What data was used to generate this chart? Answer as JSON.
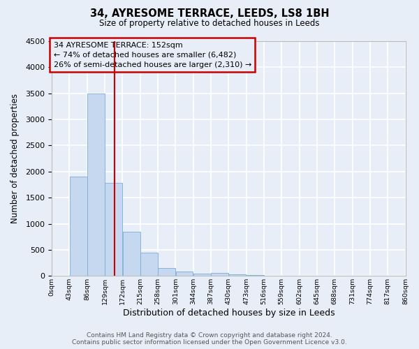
{
  "title": "34, AYRESOME TERRACE, LEEDS, LS8 1BH",
  "subtitle": "Size of property relative to detached houses in Leeds",
  "xlabel": "Distribution of detached houses by size in Leeds",
  "ylabel": "Number of detached properties",
  "bin_labels": [
    "0sqm",
    "43sqm",
    "86sqm",
    "129sqm",
    "172sqm",
    "215sqm",
    "258sqm",
    "301sqm",
    "344sqm",
    "387sqm",
    "430sqm",
    "473sqm",
    "516sqm",
    "559sqm",
    "602sqm",
    "645sqm",
    "688sqm",
    "731sqm",
    "774sqm",
    "817sqm",
    "860sqm"
  ],
  "bar_heights": [
    5,
    1900,
    3500,
    1780,
    850,
    450,
    150,
    80,
    40,
    55,
    30,
    20,
    10,
    8,
    5,
    3,
    2,
    2,
    1,
    1,
    0
  ],
  "bar_color": "#C5D8F0",
  "bar_edge_color": "#7AADD4",
  "ylim": [
    0,
    4500
  ],
  "yticks": [
    0,
    500,
    1000,
    1500,
    2000,
    2500,
    3000,
    3500,
    4000,
    4500
  ],
  "property_line_x": 152,
  "annotation_title": "34 AYRESOME TERRACE: 152sqm",
  "annotation_line1": "← 74% of detached houses are smaller (6,482)",
  "annotation_line2": "26% of semi-detached houses are larger (2,310) →",
  "annotation_box_color": "#CC0000",
  "footer_line1": "Contains HM Land Registry data © Crown copyright and database right 2024.",
  "footer_line2": "Contains public sector information licensed under the Open Government Licence v3.0.",
  "background_color": "#E8EEF8",
  "grid_color": "#FFFFFF"
}
